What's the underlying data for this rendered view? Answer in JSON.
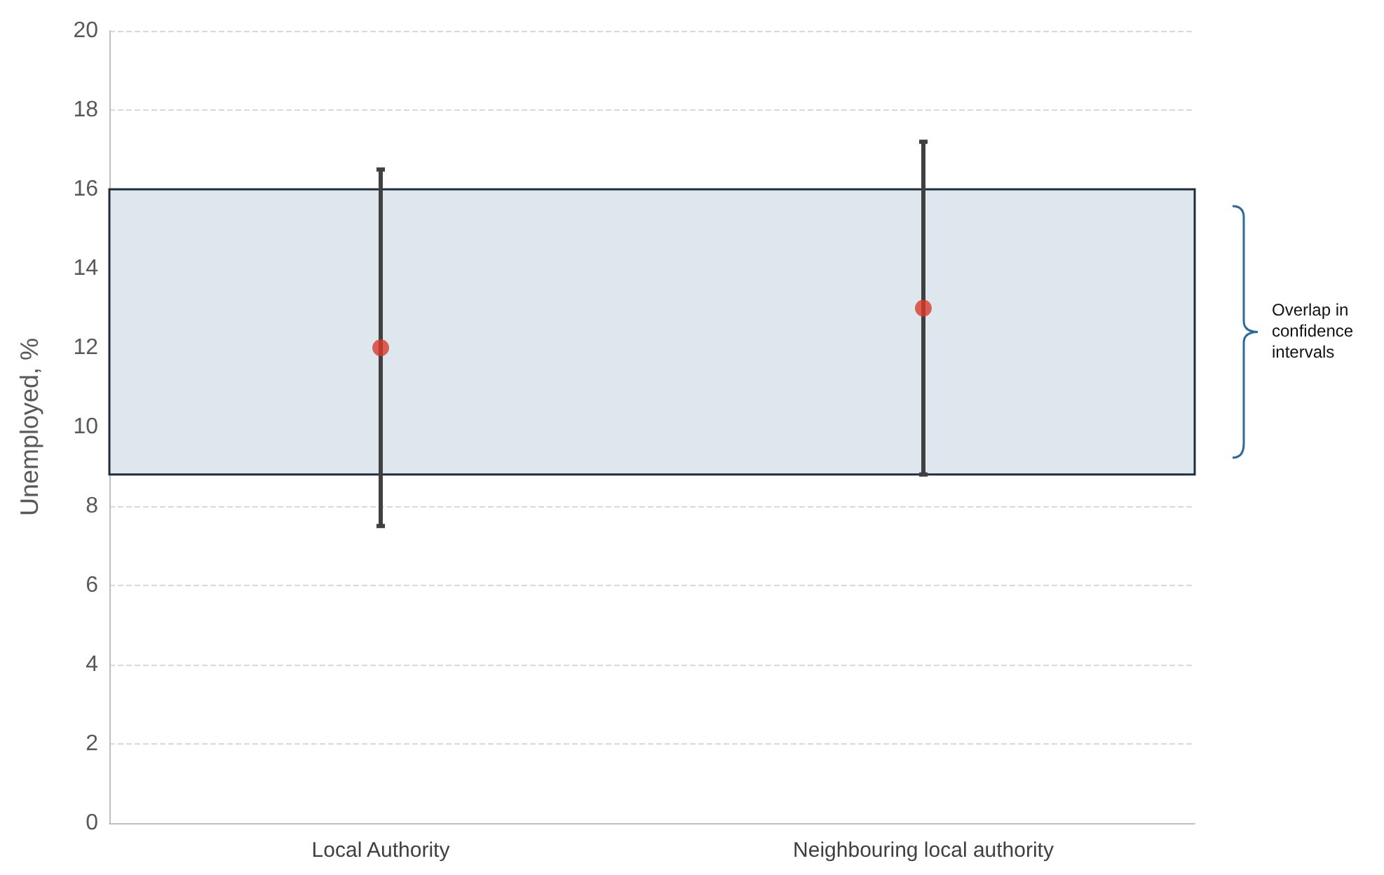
{
  "chart_data": {
    "type": "scatter",
    "ylabel": "Unemployed, %",
    "categories": [
      "Local Authority",
      "Neighbouring local authority"
    ],
    "series": [
      {
        "color": "#d9392b",
        "values": [
          12,
          13
        ],
        "errors": [
          [
            7.5,
            16.5
          ],
          [
            8.8,
            17.2
          ]
        ]
      }
    ],
    "ylim": [
      0,
      20
    ],
    "yticks": [
      0,
      2,
      4,
      6,
      8,
      10,
      12,
      14,
      16,
      18,
      20
    ],
    "grid": "y",
    "marker": "circle",
    "bands": [
      {
        "axis": "y",
        "from": 8.8,
        "to": 16,
        "color": "#dde7ed"
      }
    ],
    "annotations": [
      "Overlap in confidence intervals"
    ]
  }
}
